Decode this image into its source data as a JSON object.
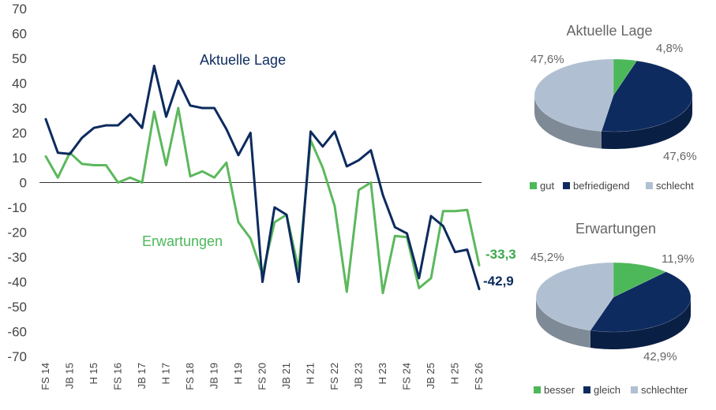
{
  "chart_data": [
    {
      "type": "line",
      "title": "",
      "xlabel": "",
      "ylabel": "",
      "ylim": [
        -70,
        70
      ],
      "yticks": [
        70,
        60,
        50,
        40,
        30,
        20,
        10,
        0,
        -10,
        -20,
        -30,
        -40,
        -50,
        -60,
        -70
      ],
      "grid": false,
      "x_tick_labels": [
        "FS 14",
        "JB 15",
        "H 15",
        "FS 16",
        "JB 17",
        "H 17",
        "FS 18",
        "JB 19",
        "H 19",
        "FS 20",
        "JB 21",
        "H 21",
        "FS 22",
        "JB 23",
        "H 23",
        "FS 24",
        "JB 25",
        "H 25",
        "FS 26"
      ],
      "series": [
        {
          "name": "Aktuelle Lage",
          "color": "#0d2b5e",
          "values": [
            25.5,
            12,
            11.5,
            18,
            22,
            23,
            23,
            27.5,
            22,
            47,
            26.5,
            41,
            31,
            30,
            30,
            21.5,
            11,
            20,
            -40,
            -10,
            -13,
            -40,
            20.5,
            14.5,
            20.5,
            6.5,
            9,
            13,
            -5,
            -18,
            -20.5,
            -38.5,
            -13.5,
            -17.5,
            -28,
            -27,
            -42.9
          ],
          "end_label": "-42,9"
        },
        {
          "name": "Erwartungen",
          "color": "#5cb85c",
          "values": [
            10.5,
            2,
            12,
            7.5,
            7,
            7,
            0,
            2,
            0,
            28.5,
            7,
            30,
            2.5,
            4.5,
            2,
            8,
            -16,
            -22.5,
            -37,
            -16,
            -13,
            -35,
            17,
            6,
            -9.5,
            -44,
            -3,
            0,
            -44.5,
            -21.5,
            -22,
            -42.5,
            -38.5,
            -11.5,
            -11.5,
            -11,
            -33.3
          ],
          "end_label": "-33,3"
        }
      ]
    },
    {
      "type": "pie",
      "title": "Aktuelle Lage",
      "slices": [
        {
          "label": "gut",
          "value": 4.8,
          "value_label": "4,8%",
          "color": "#4cb85a"
        },
        {
          "label": "befriedigend",
          "value": 47.6,
          "value_label": "47,6%",
          "color": "#0d2b5e"
        },
        {
          "label": "schlecht",
          "value": 47.6,
          "value_label": "47,6%",
          "color": "#b0c0d2"
        }
      ],
      "legend_position": "bottom"
    },
    {
      "type": "pie",
      "title": "Erwartungen",
      "slices": [
        {
          "label": "besser",
          "value": 11.9,
          "value_label": "11,9%",
          "color": "#4cb85a"
        },
        {
          "label": "gleich",
          "value": 42.9,
          "value_label": "42,9%",
          "color": "#0d2b5e"
        },
        {
          "label": "schlechter",
          "value": 45.2,
          "value_label": "45,2%",
          "color": "#b0c0d2"
        }
      ],
      "legend_position": "bottom"
    }
  ]
}
